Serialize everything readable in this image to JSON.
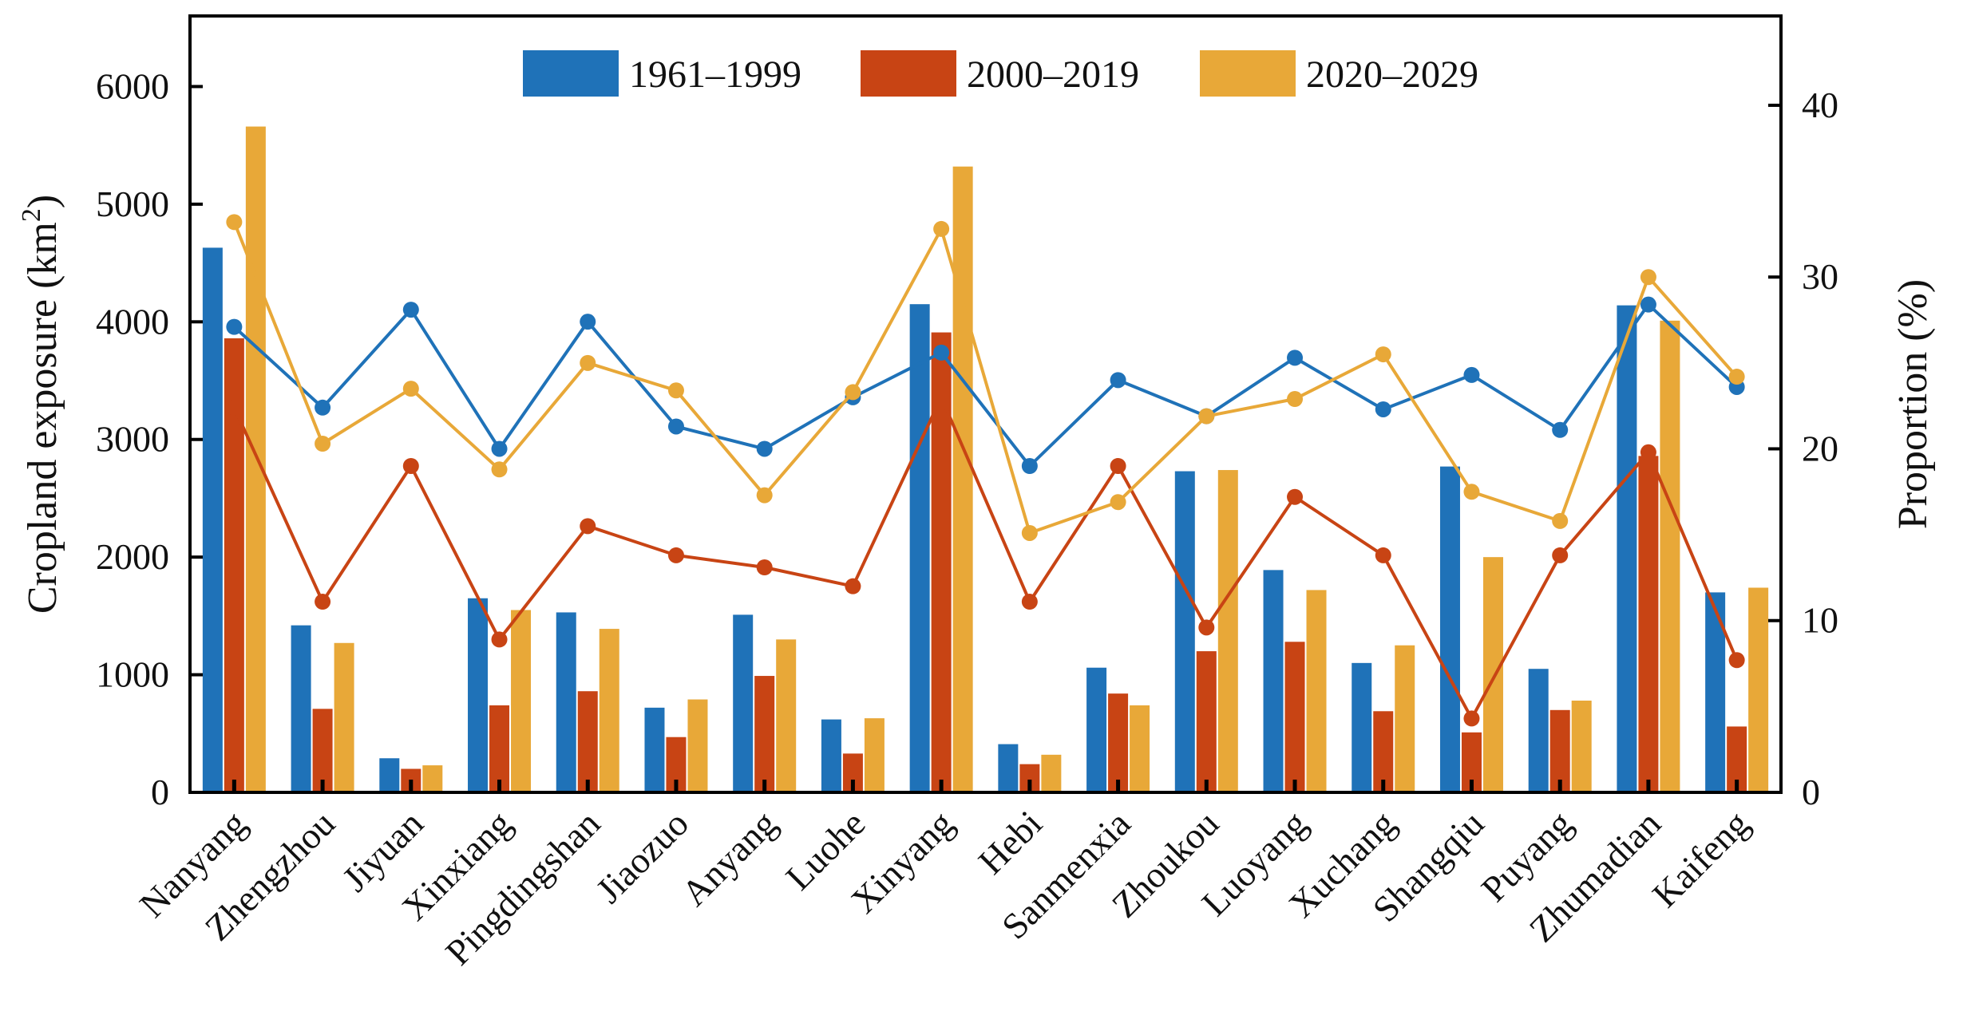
{
  "chart_data": {
    "type": "bar",
    "categories": [
      "Nanyang",
      "Zhengzhou",
      "Jiyuan",
      "Xinxiang",
      "Pingdingshan",
      "Jiaozuo",
      "Anyang",
      "Luohe",
      "Xinyang",
      "Hebi",
      "Sanmenxia",
      "Zhoukou",
      "Luoyang",
      "Xuchang",
      "Shangqiu",
      "Puyang",
      "Zhumadian",
      "Kaifeng"
    ],
    "ylabel_left_main": "Cropland exposure (km",
    "ylabel_left_sup": "2",
    "ylabel_left_close": ")",
    "ylabel_right": "Proportion (%)",
    "ylim_left": [
      0,
      6600
    ],
    "ylim_right": [
      0,
      45.2
    ],
    "yticks_left": [
      "0",
      "1000",
      "2000",
      "3000",
      "4000",
      "5000",
      "6000"
    ],
    "yticks_right": [
      "0",
      "10",
      "20",
      "30",
      "40"
    ],
    "series": [
      {
        "name": "1961–1999",
        "color": "#1f72b8",
        "bar_values": [
          4630,
          1420,
          290,
          1650,
          1530,
          720,
          1510,
          620,
          4150,
          410,
          1060,
          2730,
          1890,
          1100,
          2770,
          1050,
          4140,
          1700
        ],
        "line_values": [
          27.1,
          22.4,
          28.1,
          20.0,
          27.4,
          21.3,
          20.0,
          23.0,
          25.6,
          19.0,
          24.0,
          21.9,
          25.3,
          22.3,
          24.3,
          21.1,
          28.4,
          23.6
        ]
      },
      {
        "name": "2000–2019",
        "color": "#c84414",
        "bar_values": [
          3860,
          710,
          200,
          740,
          860,
          470,
          990,
          330,
          3910,
          240,
          840,
          1200,
          1280,
          690,
          510,
          700,
          2860,
          560
        ],
        "line_values": [
          22.4,
          11.1,
          19.0,
          8.9,
          15.5,
          13.8,
          13.1,
          12.0,
          23.0,
          11.1,
          19.0,
          9.6,
          17.2,
          13.8,
          4.3,
          13.8,
          19.8,
          7.7
        ]
      },
      {
        "name": "2020–2029",
        "color": "#e8a838",
        "bar_values": [
          5660,
          1270,
          230,
          1550,
          1390,
          790,
          1300,
          630,
          5320,
          320,
          740,
          2740,
          1720,
          1250,
          2000,
          780,
          4010,
          1740
        ],
        "line_values": [
          33.2,
          20.3,
          23.5,
          18.8,
          25.0,
          23.4,
          17.3,
          23.3,
          32.8,
          15.1,
          16.9,
          21.9,
          22.9,
          25.5,
          17.5,
          15.8,
          30.0,
          24.2
        ]
      }
    ]
  }
}
